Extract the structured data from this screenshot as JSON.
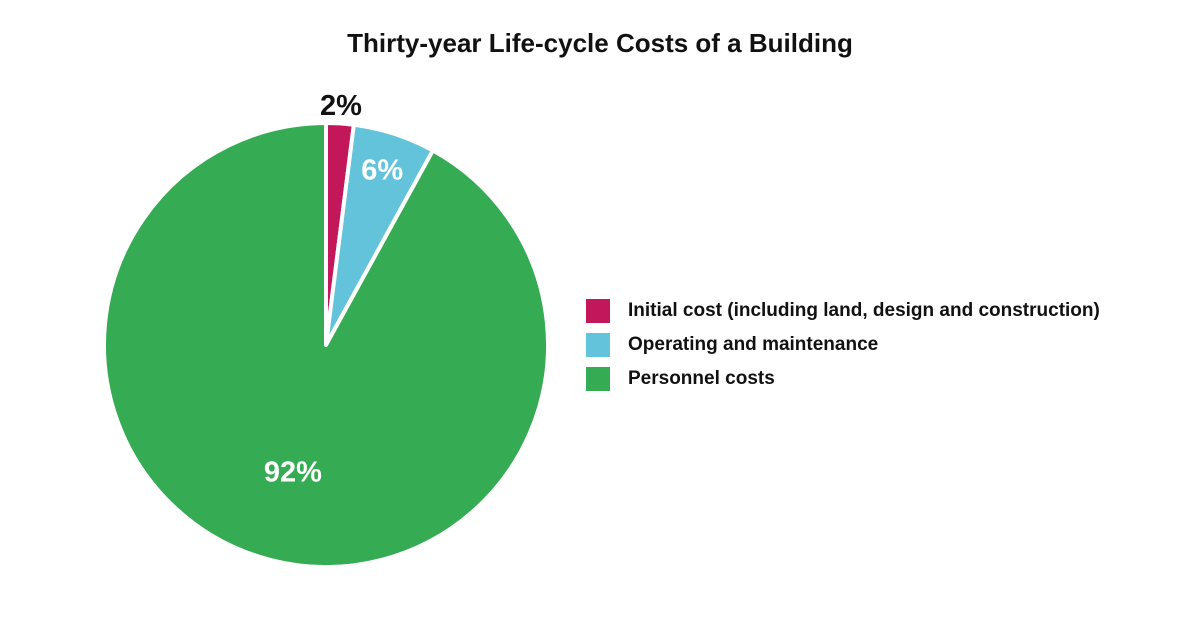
{
  "chart_data": {
    "type": "pie",
    "title": "Thirty-year Life-cycle Costs of a Building",
    "categories": [
      "Initial cost (including land, design and construction)",
      "Operating and maintenance",
      "Personnel costs"
    ],
    "values": [
      2,
      6,
      92
    ],
    "labels": [
      "2%",
      "6%",
      "92%"
    ],
    "colors": [
      "#c2185b",
      "#62c3da",
      "#35ab53"
    ],
    "label_colors": [
      "#111111",
      "#ffffff",
      "#ffffff"
    ],
    "legend_position": "right"
  }
}
